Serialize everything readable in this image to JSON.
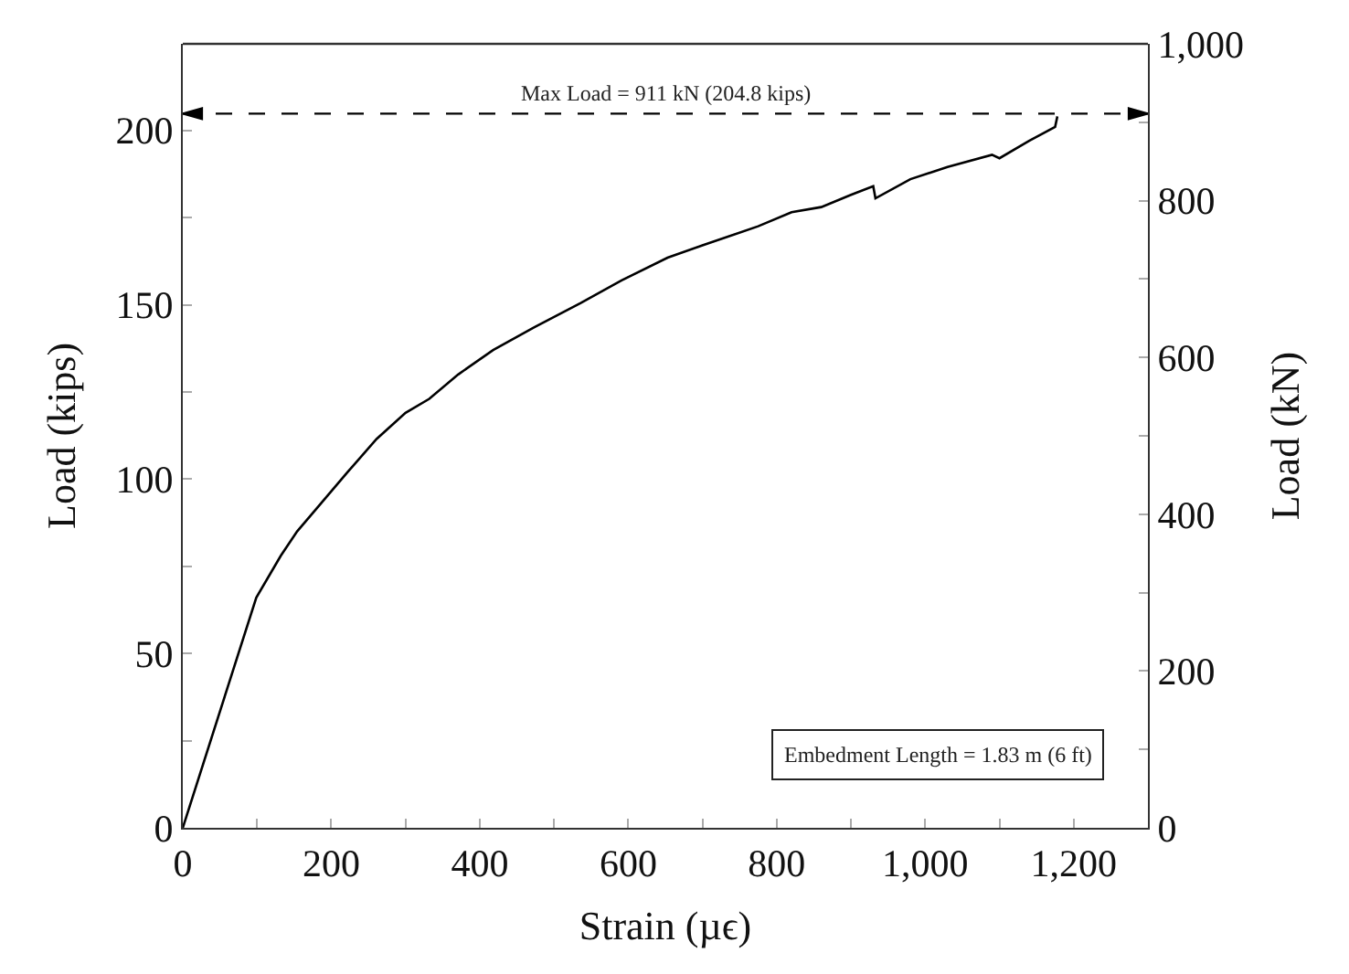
{
  "chart_data": {
    "type": "line",
    "xlabel": "Strain (µϵ)",
    "ylabel": "Load (kips)",
    "y2label": "Load (kN)",
    "xlim": [
      0,
      1300
    ],
    "xticks": [
      0,
      {
        "value": 100,
        "label": null
      },
      200,
      {
        "value": 300,
        "label": null
      },
      400,
      {
        "value": 500,
        "label": null
      },
      600,
      {
        "value": 700,
        "label": null
      },
      800,
      {
        "value": 900,
        "label": null
      },
      {
        "value": 1000,
        "label": "1,000"
      },
      {
        "value": 1100,
        "label": null
      },
      {
        "value": 1200,
        "label": "1,200"
      }
    ],
    "ylim": [
      0,
      224.8
    ],
    "yticks": [
      0,
      {
        "value": 25,
        "label": null
      },
      50,
      {
        "value": 75,
        "label": null
      },
      100,
      {
        "value": 125,
        "label": null
      },
      150,
      {
        "value": 175,
        "label": null
      },
      200
    ],
    "y2lim": [
      0,
      1000
    ],
    "y2ticks": [
      0,
      {
        "value": 100,
        "label": null
      },
      200,
      {
        "value": 300,
        "label": null
      },
      400,
      {
        "value": 500,
        "label": null
      },
      600,
      {
        "value": 700,
        "label": null
      },
      800,
      {
        "value": 900,
        "label": null
      },
      {
        "value": 1000,
        "label": "1,000"
      }
    ],
    "series": [
      {
        "color": "#000000",
        "x": [
          0,
          57,
          99,
          132,
          154,
          182,
          222,
          261,
          300,
          332,
          371,
          418,
          473,
          536,
          591,
          653,
          700,
          775,
          820,
          860,
          900,
          930,
          933,
          980,
          1030,
          1090,
          1100,
          1140,
          1175,
          1178
        ],
        "values": [
          0,
          38,
          66,
          78,
          85,
          92,
          102,
          111.5,
          119,
          123,
          130,
          137,
          143.5,
          150.5,
          157,
          163.5,
          167,
          172.5,
          176.5,
          178,
          181.5,
          184,
          180.5,
          186,
          189.5,
          193,
          192,
          197,
          201,
          204
        ]
      }
    ],
    "ref_lines": [
      {
        "axis": "y",
        "value": 204.8,
        "label": "Max Load = 911 kN (204.8 kips)",
        "color": "#000000",
        "line_style": "dashed"
      }
    ],
    "annotations": [
      "Embedment Length = 1.83 m (6 ft)"
    ],
    "marker": "none",
    "line_style": "solid"
  }
}
